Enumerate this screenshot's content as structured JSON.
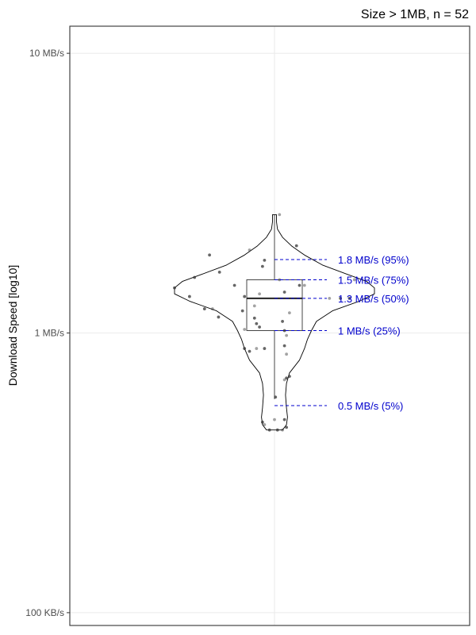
{
  "chart_data": {
    "type": "violin",
    "title": "Size > 1MB, n = 52",
    "xlabel": "",
    "ylabel": "Download Speed [log10]",
    "y_scale": "log10",
    "y_unit": "MB/s",
    "ylim": [
      0.09,
      12.5
    ],
    "y_ticks": [
      {
        "value": 0.1,
        "label": "100 KB/s"
      },
      {
        "value": 1,
        "label": "1 MB/s"
      },
      {
        "value": 10,
        "label": "10 MB/s"
      }
    ],
    "grid": true,
    "violin": {
      "min": 0.45,
      "max": 2.65,
      "profile": [
        {
          "y": 0.45,
          "w": 0.08
        },
        {
          "y": 0.47,
          "w": 0.12
        },
        {
          "y": 0.5,
          "w": 0.13
        },
        {
          "y": 0.54,
          "w": 0.12
        },
        {
          "y": 0.6,
          "w": 0.11
        },
        {
          "y": 0.66,
          "w": 0.12
        },
        {
          "y": 0.72,
          "w": 0.15
        },
        {
          "y": 0.8,
          "w": 0.25
        },
        {
          "y": 0.88,
          "w": 0.3
        },
        {
          "y": 0.95,
          "w": 0.33
        },
        {
          "y": 1.02,
          "w": 0.37
        },
        {
          "y": 1.1,
          "w": 0.42
        },
        {
          "y": 1.2,
          "w": 0.58
        },
        {
          "y": 1.3,
          "w": 0.85
        },
        {
          "y": 1.38,
          "w": 1.0
        },
        {
          "y": 1.45,
          "w": 1.0
        },
        {
          "y": 1.53,
          "w": 0.92
        },
        {
          "y": 1.62,
          "w": 0.73
        },
        {
          "y": 1.75,
          "w": 0.48
        },
        {
          "y": 1.9,
          "w": 0.3
        },
        {
          "y": 2.05,
          "w": 0.17
        },
        {
          "y": 2.2,
          "w": 0.08
        },
        {
          "y": 2.35,
          "w": 0.03
        },
        {
          "y": 2.5,
          "w": 0.02
        },
        {
          "y": 2.65,
          "w": 0.02
        }
      ]
    },
    "box": {
      "q1": 1.02,
      "median": 1.33,
      "q3": 1.55,
      "whisker_low": 0.58,
      "whisker_high": 2.65
    },
    "quantiles": [
      {
        "p": 95,
        "value": 1.83,
        "label": "1.8 MB/s (95%)"
      },
      {
        "p": 75,
        "value": 1.55,
        "label": "1.5 MB/s (75%)"
      },
      {
        "p": 50,
        "value": 1.33,
        "label": "1.3 MB/s (50%)"
      },
      {
        "p": 25,
        "value": 1.02,
        "label": "1 MB/s (25%)"
      },
      {
        "p": 5,
        "value": 0.55,
        "label": "0.5 MB/s (5%)"
      }
    ],
    "points": [
      {
        "x": 0.05,
        "y": 2.65
      },
      {
        "x": 0.22,
        "y": 2.05
      },
      {
        "x": -0.65,
        "y": 1.9
      },
      {
        "x": -0.25,
        "y": 1.98
      },
      {
        "x": -0.1,
        "y": 1.82
      },
      {
        "x": -0.12,
        "y": 1.73
      },
      {
        "x": 0.05,
        "y": 1.55
      },
      {
        "x": -0.55,
        "y": 1.65
      },
      {
        "x": -0.8,
        "y": 1.58
      },
      {
        "x": 0.8,
        "y": 1.55
      },
      {
        "x": -1.0,
        "y": 1.45
      },
      {
        "x": -0.4,
        "y": 1.48
      },
      {
        "x": 0.3,
        "y": 1.48
      },
      {
        "x": 0.75,
        "y": 1.33
      },
      {
        "x": 0.66,
        "y": 1.33
      },
      {
        "x": 0.55,
        "y": 1.33
      },
      {
        "x": -0.85,
        "y": 1.35
      },
      {
        "x": -0.7,
        "y": 1.22
      },
      {
        "x": -0.62,
        "y": 1.22
      },
      {
        "x": -0.56,
        "y": 1.14
      },
      {
        "x": -0.3,
        "y": 1.35
      },
      {
        "x": -0.15,
        "y": 1.38
      },
      {
        "x": 0.25,
        "y": 1.48
      },
      {
        "x": 0.1,
        "y": 1.4
      },
      {
        "x": -0.2,
        "y": 1.25
      },
      {
        "x": -0.32,
        "y": 1.2
      },
      {
        "x": -0.18,
        "y": 1.08
      },
      {
        "x": 0.15,
        "y": 1.18
      },
      {
        "x": 0.08,
        "y": 1.1
      },
      {
        "x": -0.2,
        "y": 1.13
      },
      {
        "x": -0.3,
        "y": 1.03
      },
      {
        "x": -0.15,
        "y": 1.05
      },
      {
        "x": 0.1,
        "y": 1.02
      },
      {
        "x": 0.12,
        "y": 0.98
      },
      {
        "x": -0.3,
        "y": 0.88
      },
      {
        "x": -0.25,
        "y": 0.86
      },
      {
        "x": -0.18,
        "y": 0.88
      },
      {
        "x": -0.1,
        "y": 0.88
      },
      {
        "x": 0.1,
        "y": 0.9
      },
      {
        "x": 0.12,
        "y": 0.84
      },
      {
        "x": 0.15,
        "y": 0.7
      },
      {
        "x": 0.12,
        "y": 0.69
      },
      {
        "x": 0.1,
        "y": 0.68
      },
      {
        "x": 0.01,
        "y": 0.59
      },
      {
        "x": -0.12,
        "y": 0.48
      },
      {
        "x": 0.0,
        "y": 0.49
      },
      {
        "x": 0.1,
        "y": 0.49
      },
      {
        "x": 0.12,
        "y": 0.46
      },
      {
        "x": -0.1,
        "y": 0.47
      },
      {
        "x": -0.05,
        "y": 0.45
      },
      {
        "x": 0.03,
        "y": 0.45
      },
      {
        "x": 0.08,
        "y": 0.45
      }
    ],
    "annotation_color": "#0000cc",
    "violin_fill": "#ffffff",
    "box_stroke": "#333333",
    "point_color": "#333333"
  }
}
